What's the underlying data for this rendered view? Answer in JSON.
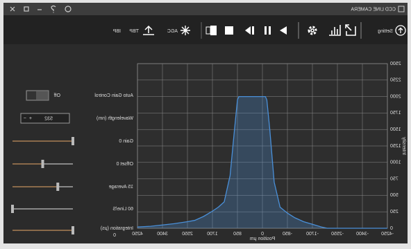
{
  "window": {
    "title": "CCD LINE CAMERA"
  },
  "toolbar": {
    "setting": "Setting",
    "agc": "AGC",
    "ibp": "IBP",
    "tbp": "TBP"
  },
  "controls": {
    "auto_gain": {
      "label": "Auto Gain Control",
      "state": "Off"
    },
    "wavelength": {
      "label": "Wavelength (nm)",
      "value": 532
    },
    "gain": "Gain 0",
    "offset": "Offset 0",
    "average": "15 Average",
    "line_rate": "60 Line/S",
    "integration": {
      "label": "Integration (μs)",
      "value": 0
    }
  },
  "chart_data": {
    "type": "line",
    "xlabel": "Position μm",
    "ylabel": "Intensity",
    "color": "#4a90d9",
    "x": [
      -4250,
      -3800,
      -3400,
      -3000,
      -2550,
      -2200,
      -2000,
      -1700,
      -1400,
      -1100,
      -850,
      -600,
      -400,
      -250,
      -150,
      -100,
      0,
      200,
      400,
      600,
      800,
      850,
      950,
      1100,
      1300,
      1500,
      1700,
      2000,
      2300,
      2550,
      3000,
      3400,
      3800,
      4250
    ],
    "values": [
      0,
      0,
      0,
      0,
      0,
      0,
      20,
      60,
      100,
      160,
      230,
      320,
      700,
      1500,
      1950,
      2000,
      2000,
      2000,
      2000,
      2000,
      2000,
      1950,
      1500,
      800,
      400,
      320,
      260,
      180,
      120,
      100,
      70,
      50,
      30,
      20
    ],
    "xlim": [
      -4250,
      4250
    ],
    "xticks": [
      -4250,
      -3400,
      -2550,
      -1700,
      -850,
      0,
      850,
      1700,
      2550,
      3400,
      4250
    ],
    "ylim": [
      0,
      2500
    ],
    "yticks": [
      0,
      250,
      500,
      750,
      1000,
      1250,
      1500,
      1750,
      2000,
      2250,
      2500
    ],
    "grid": true
  }
}
